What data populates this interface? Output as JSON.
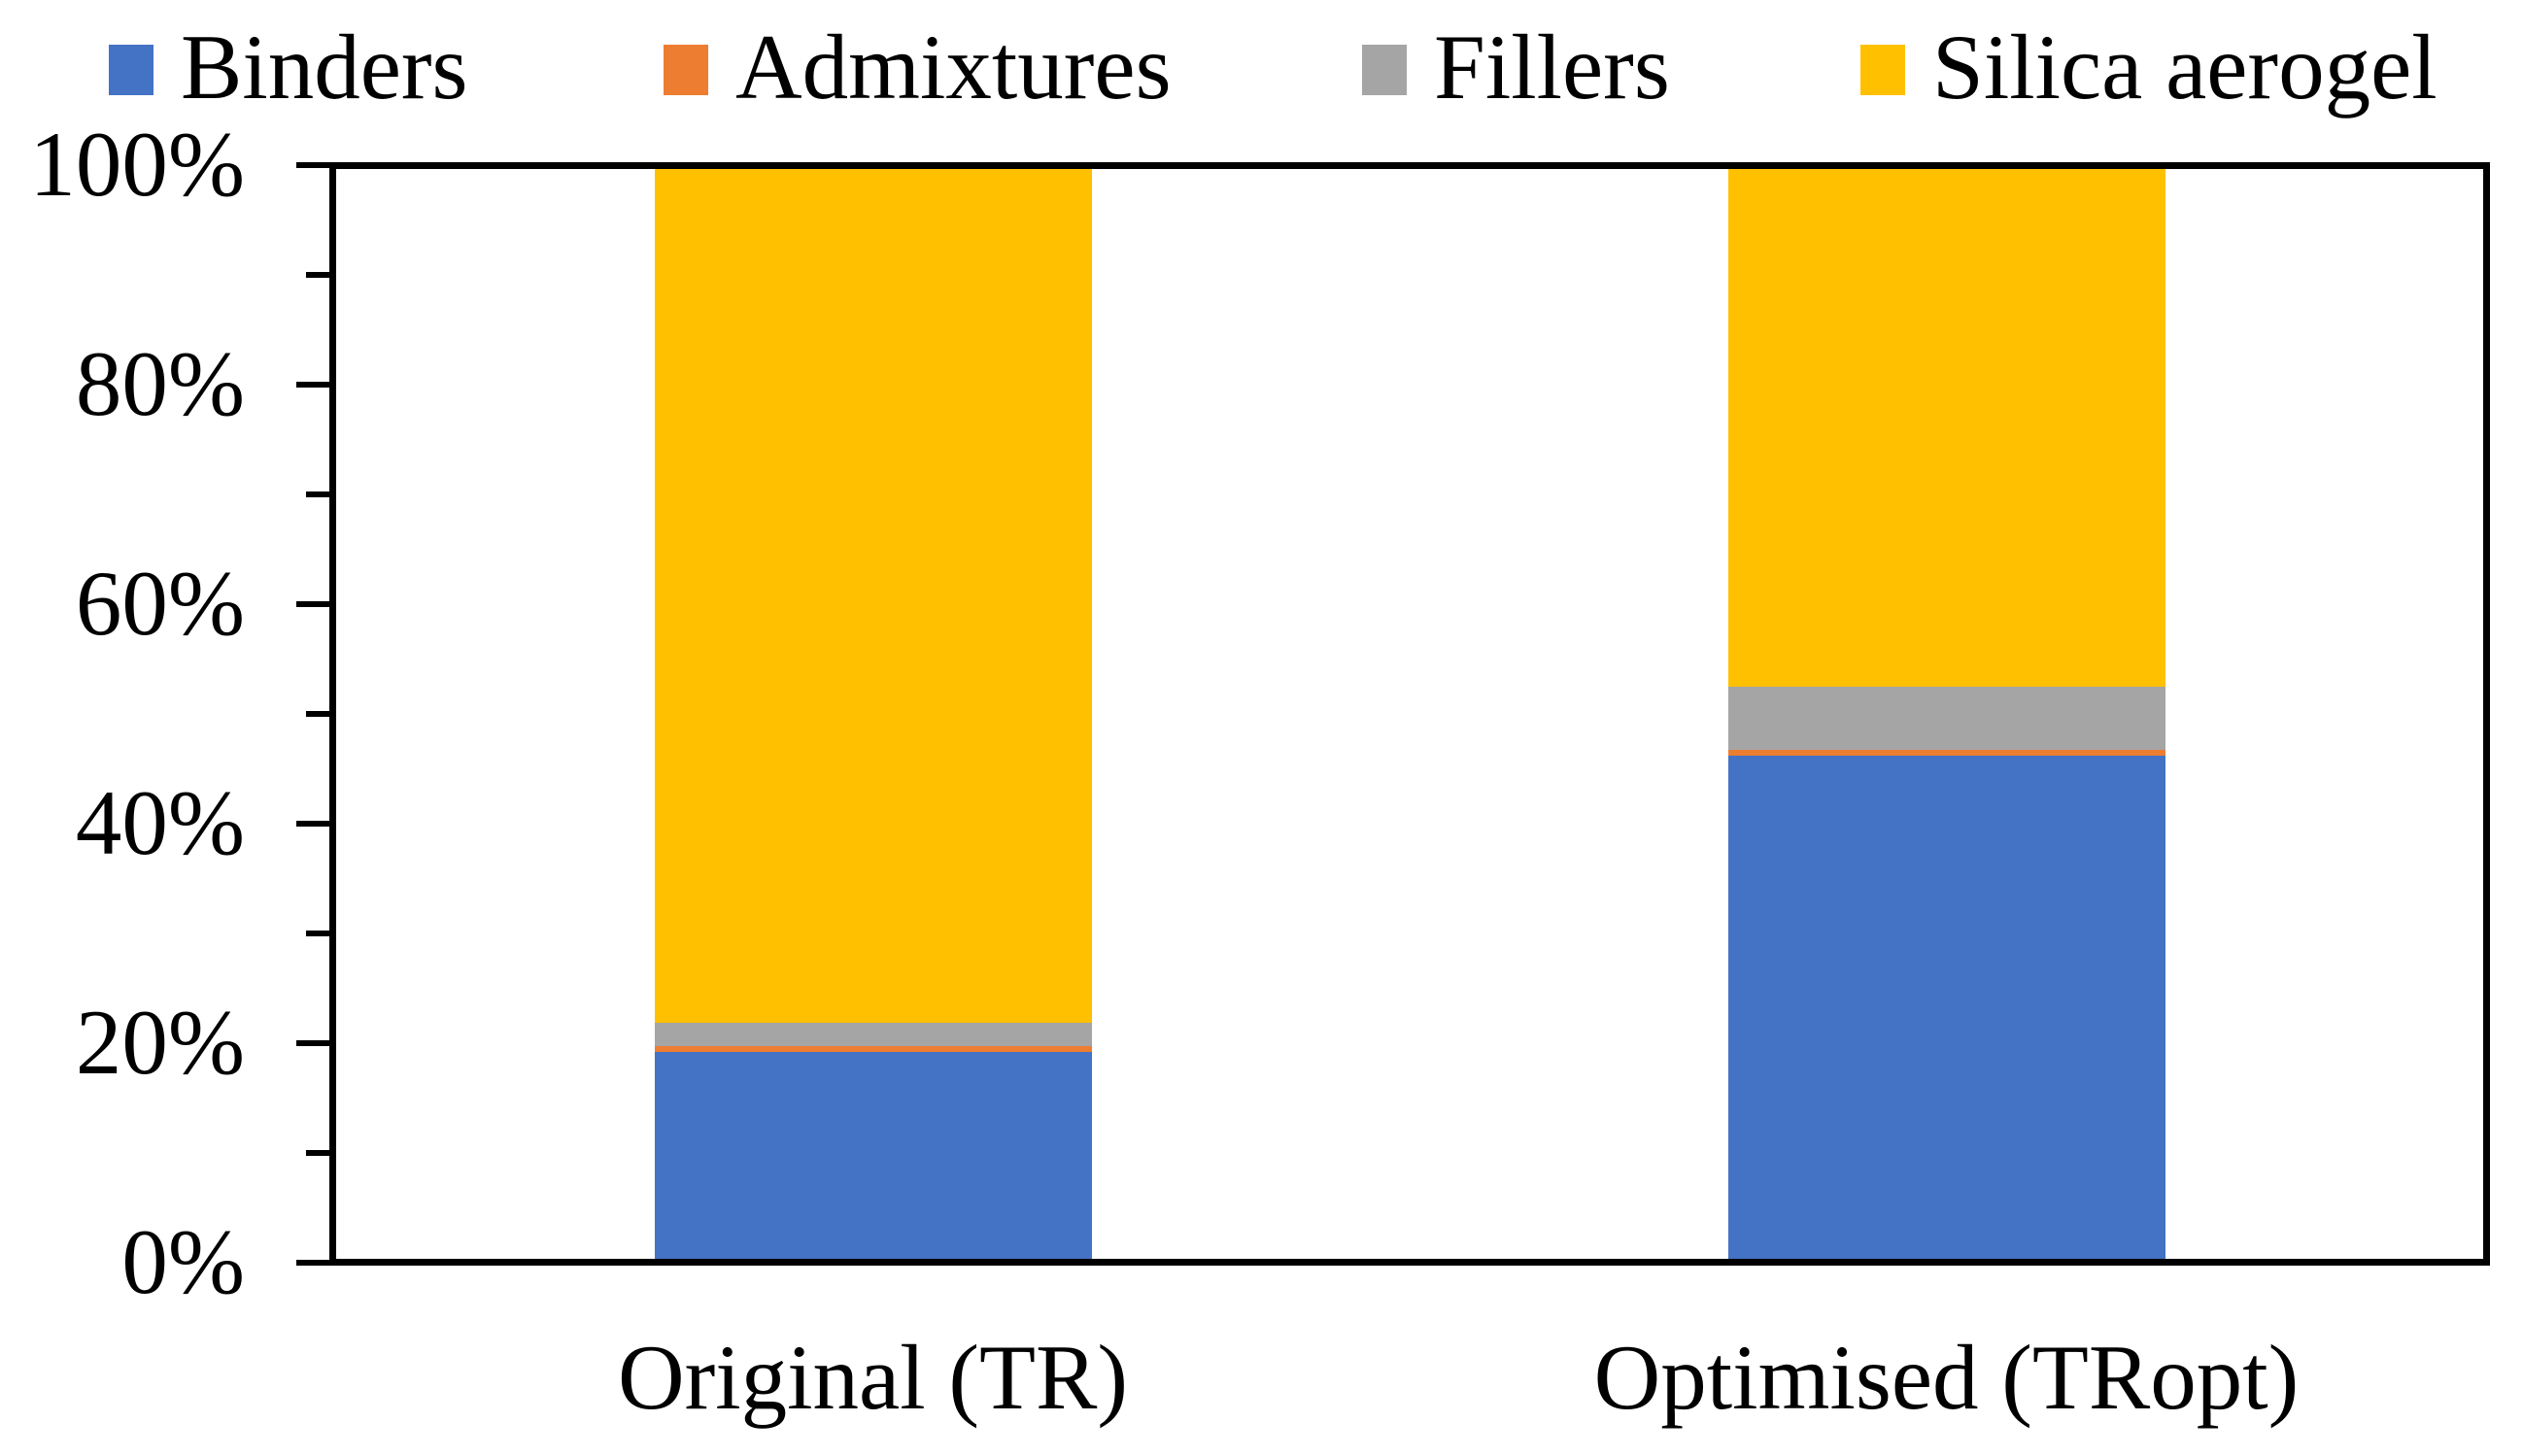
{
  "chart_data": {
    "type": "bar",
    "variant": "stacked-100-percent",
    "title": "",
    "xlabel": "",
    "ylabel": "",
    "ylim": [
      0,
      100
    ],
    "grid": false,
    "legend_position": "top",
    "categories": [
      "Original (TR)",
      "Optimised (TRopt)"
    ],
    "series": [
      {
        "name": "Binders",
        "color": "#4472C4",
        "values": [
          19.0,
          46.2
        ]
      },
      {
        "name": "Admixtures",
        "color": "#ED7D31",
        "values": [
          0.5,
          0.5
        ]
      },
      {
        "name": "Fillers",
        "color": "#A5A5A5",
        "values": [
          2.2,
          5.8
        ]
      },
      {
        "name": "Silica aerogel",
        "color": "#FFC000",
        "values": [
          78.3,
          47.5
        ]
      }
    ],
    "y_major_tick_labels": [
      "0%",
      "20%",
      "40%",
      "60%",
      "80%",
      "100%"
    ],
    "y_major_step": 20,
    "y_minor_step": 10,
    "axis_color": "#000000",
    "text_color": "#000000",
    "background_color": "#ffffff"
  }
}
